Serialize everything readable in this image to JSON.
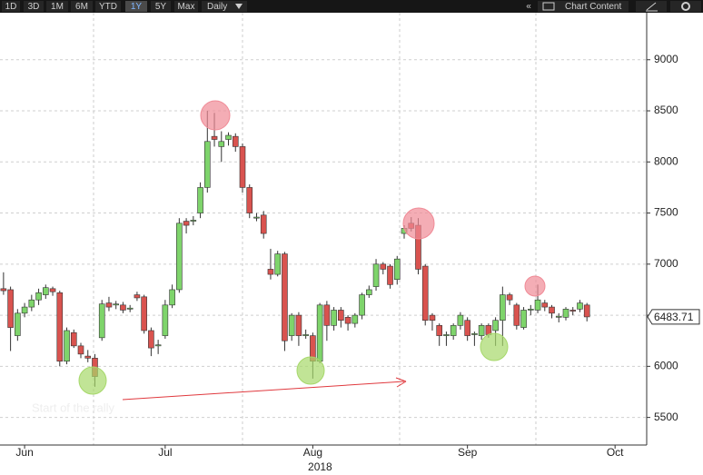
{
  "toolbar": {
    "range_buttons": [
      "1D",
      "3D",
      "1M",
      "6M",
      "YTD",
      "1Y",
      "5Y",
      "Max"
    ],
    "active": "1Y",
    "frequency": "Daily",
    "collapse": "«",
    "chart_content": "Chart Content"
  },
  "chart_data": {
    "type": "candlestick",
    "annotation": "Start of the rally",
    "year": "2018",
    "categories": [
      null,
      null,
      null,
      "Jun",
      null,
      null,
      null,
      null,
      null,
      null,
      null,
      null,
      null,
      null,
      null,
      null,
      null,
      null,
      null,
      null,
      null,
      null,
      null,
      "Jul",
      null,
      null,
      null,
      null,
      null,
      null,
      null,
      null,
      null,
      null,
      null,
      null,
      null,
      null,
      null,
      null,
      null,
      null,
      null,
      null,
      "Aug",
      null,
      null,
      null,
      null,
      null,
      null,
      null,
      null,
      null,
      null,
      null,
      null,
      null,
      null,
      null,
      null,
      null,
      null,
      null,
      null,
      null,
      "Sep",
      null,
      null,
      null,
      null,
      null,
      null,
      null,
      null,
      null,
      null,
      null,
      null,
      null,
      null,
      null,
      null,
      null,
      null,
      null,
      null,
      "Oct",
      null,
      null,
      null,
      null
    ],
    "open": [
      6760,
      6750,
      6300,
      6520,
      6580,
      6650,
      6700,
      6760,
      6720,
      6050,
      6330,
      6200,
      6100,
      6080,
      6280,
      6620,
      6600,
      6600,
      6560,
      6700,
      6680,
      6350,
      6200,
      6300,
      6600,
      6750,
      7420,
      7420,
      7500,
      7750,
      8250,
      8150,
      8220,
      8250,
      8150,
      7750,
      7450,
      7480,
      6950,
      6900,
      7100,
      6300,
      6500,
      6300,
      6300,
      6050,
      6600,
      6400,
      6550,
      6480,
      6420,
      6500,
      6700,
      6780,
      7000,
      6980,
      6850,
      7300,
      7400,
      7380,
      6980,
      6500,
      6400,
      6300,
      6300,
      6400,
      6450,
      6310,
      6300,
      6400,
      6350,
      6450,
      6700,
      6600,
      6380,
      6550,
      6550,
      6620,
      6580,
      6480,
      6480,
      6550,
      6560,
      6600,
      null,
      null,
      null,
      null,
      null,
      null,
      null,
      null
    ],
    "high": [
      6920,
      6780,
      6560,
      6620,
      6700,
      6760,
      6800,
      6780,
      6740,
      6380,
      6360,
      6230,
      6160,
      6120,
      6650,
      6680,
      6640,
      6630,
      6600,
      6730,
      6700,
      6380,
      6260,
      6650,
      6800,
      7450,
      7450,
      7470,
      7800,
      8500,
      8480,
      8300,
      8290,
      8280,
      8180,
      7780,
      7500,
      7520,
      7150,
      7130,
      7120,
      6520,
      6530,
      6360,
      6330,
      6620,
      6640,
      6580,
      6580,
      6500,
      6520,
      6720,
      6790,
      7050,
      7020,
      7000,
      7080,
      7380,
      7460,
      7450,
      7000,
      6520,
      6420,
      6340,
      6420,
      6530,
      6480,
      6340,
      6420,
      6420,
      6480,
      6780,
      6720,
      6620,
      6580,
      6600,
      6800,
      6650,
      6600,
      6520,
      6580,
      6580,
      6650,
      6620,
      null,
      null,
      null,
      null,
      null,
      null,
      null,
      null
    ],
    "low": [
      6700,
      6150,
      6250,
      6480,
      6540,
      6600,
      6660,
      6690,
      6000,
      6020,
      6180,
      6080,
      6040,
      5800,
      6250,
      6540,
      6560,
      6520,
      6530,
      6640,
      6320,
      6100,
      6120,
      6270,
      6570,
      6720,
      7300,
      7380,
      7450,
      7700,
      8150,
      8000,
      8160,
      8100,
      7700,
      7450,
      7420,
      7250,
      6850,
      6880,
      6150,
      6250,
      6200,
      6270,
      5880,
      6030,
      6250,
      6350,
      6380,
      6350,
      6380,
      6460,
      6670,
      6740,
      6900,
      6760,
      6800,
      7250,
      7320,
      6900,
      6400,
      6350,
      6200,
      6200,
      6260,
      6360,
      6250,
      6200,
      6260,
      6280,
      6200,
      6200,
      6600,
      6360,
      6360,
      6500,
      6520,
      6540,
      6470,
      6430,
      6450,
      6500,
      6530,
      6440,
      null,
      null,
      null,
      null,
      null,
      null,
      null,
      null
    ],
    "close": [
      6740,
      6380,
      6520,
      6580,
      6650,
      6720,
      6770,
      6730,
      6050,
      6350,
      6200,
      6120,
      6080,
      5900,
      6610,
      6580,
      6610,
      6550,
      6570,
      6670,
      6350,
      6180,
      6210,
      6600,
      6750,
      7400,
      7380,
      7430,
      7750,
      8200,
      8220,
      8200,
      8260,
      8150,
      7750,
      7500,
      7460,
      7300,
      6900,
      7100,
      6250,
      6500,
      6300,
      6310,
      6050,
      6600,
      6400,
      6550,
      6450,
      6420,
      6500,
      6700,
      6750,
      7000,
      6950,
      6800,
      7050,
      7350,
      7350,
      6950,
      6450,
      6450,
      6300,
      6310,
      6400,
      6500,
      6300,
      6320,
      6400,
      6310,
      6450,
      6700,
      6650,
      6400,
      6550,
      6560,
      6650,
      6580,
      6520,
      6490,
      6560,
      6540,
      6620,
      6483.71,
      null,
      null,
      null,
      null,
      null,
      null,
      null,
      null
    ],
    "up_color": "#7ed46b",
    "down_color": "#d9534f",
    "last_value": 6483.71,
    "ylim": [
      5230,
      9460
    ],
    "yticks": [
      5500,
      6000,
      6500,
      7000,
      7500,
      8000,
      8500,
      9000
    ],
    "grid": true
  }
}
